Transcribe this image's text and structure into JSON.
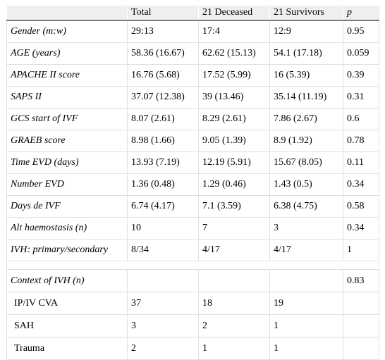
{
  "table": {
    "headers": [
      "",
      "Total",
      "21 Deceased",
      "21 Survivors",
      "p"
    ],
    "rows": [
      {
        "label": "Gender (m:w)",
        "total": "29:13",
        "deceased": "17:4",
        "survivors": "12:9",
        "p": "0.95"
      },
      {
        "label": "AGE (years)",
        "total": "58.36 (16.67)",
        "deceased": "62.62 (15.13)",
        "survivors": "54.1 (17.18)",
        "p": "0.059"
      },
      {
        "label": "APACHE II score",
        "total": "16.76 (5.68)",
        "deceased": "17.52 (5.99)",
        "survivors": "16 (5.39)",
        "p": "0.39"
      },
      {
        "label": "SAPS II",
        "total": "37.07 (12.38)",
        "deceased": "39 (13.46)",
        "survivors": "35.14 (11.19)",
        "p": "0.31"
      },
      {
        "label": "GCS start of IVF",
        "total": "8.07 (2.61)",
        "deceased": "8.29 (2.61)",
        "survivors": "7.86 (2.67)",
        "p": "0.6"
      },
      {
        "label": "GRAEB score",
        "total": "8.98 (1.66)",
        "deceased": "9.05 (1.39)",
        "survivors": "8.9 (1.92)",
        "p": "0.78"
      },
      {
        "label": "Time EVD (days)",
        "total": "13.93 (7.19)",
        "deceased": "12.19 (5.91)",
        "survivors": "15.67 (8.05)",
        "p": "0.11"
      },
      {
        "label": "Number EVD",
        "total": "1.36 (0.48)",
        "deceased": "1.29 (0.46)",
        "survivors": "1.43 (0.5)",
        "p": "0.34"
      },
      {
        "label": "Days de IVF",
        "total": "6.74 (4.17)",
        "deceased": "7.1 (3.59)",
        "survivors": "6.38 (4.75)",
        "p": "0.58"
      },
      {
        "label": "Alt haemostasis (n)",
        "total": "10",
        "deceased": "7",
        "survivors": "3",
        "p": "0.34"
      },
      {
        "label": "IVH: primary/secondary",
        "total": "8/34",
        "deceased": "4/17",
        "survivors": "4/17",
        "p": "1"
      }
    ],
    "section": {
      "label": "Context of IVH (n)",
      "p": "0.83"
    },
    "context_rows": [
      {
        "label": "IP/IV CVA",
        "total": "37",
        "deceased": "18",
        "survivors": "19"
      },
      {
        "label": "SAH",
        "total": "3",
        "deceased": "2",
        "survivors": "1"
      },
      {
        "label": "Trauma",
        "total": "2",
        "deceased": "1",
        "survivors": "1"
      }
    ]
  }
}
